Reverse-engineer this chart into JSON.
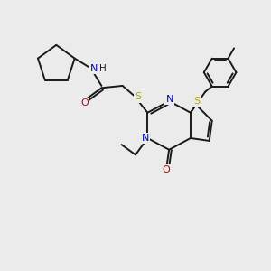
{
  "background_color": "#ebebeb",
  "bond_color": "#1a1a1a",
  "N_color": "#0000ee",
  "S_color": "#bbaa00",
  "O_color": "#cc0000",
  "line_width": 1.4,
  "figsize": [
    3.0,
    3.0
  ],
  "dpi": 100,
  "xlim": [
    0,
    10
  ],
  "ylim": [
    0,
    10
  ]
}
